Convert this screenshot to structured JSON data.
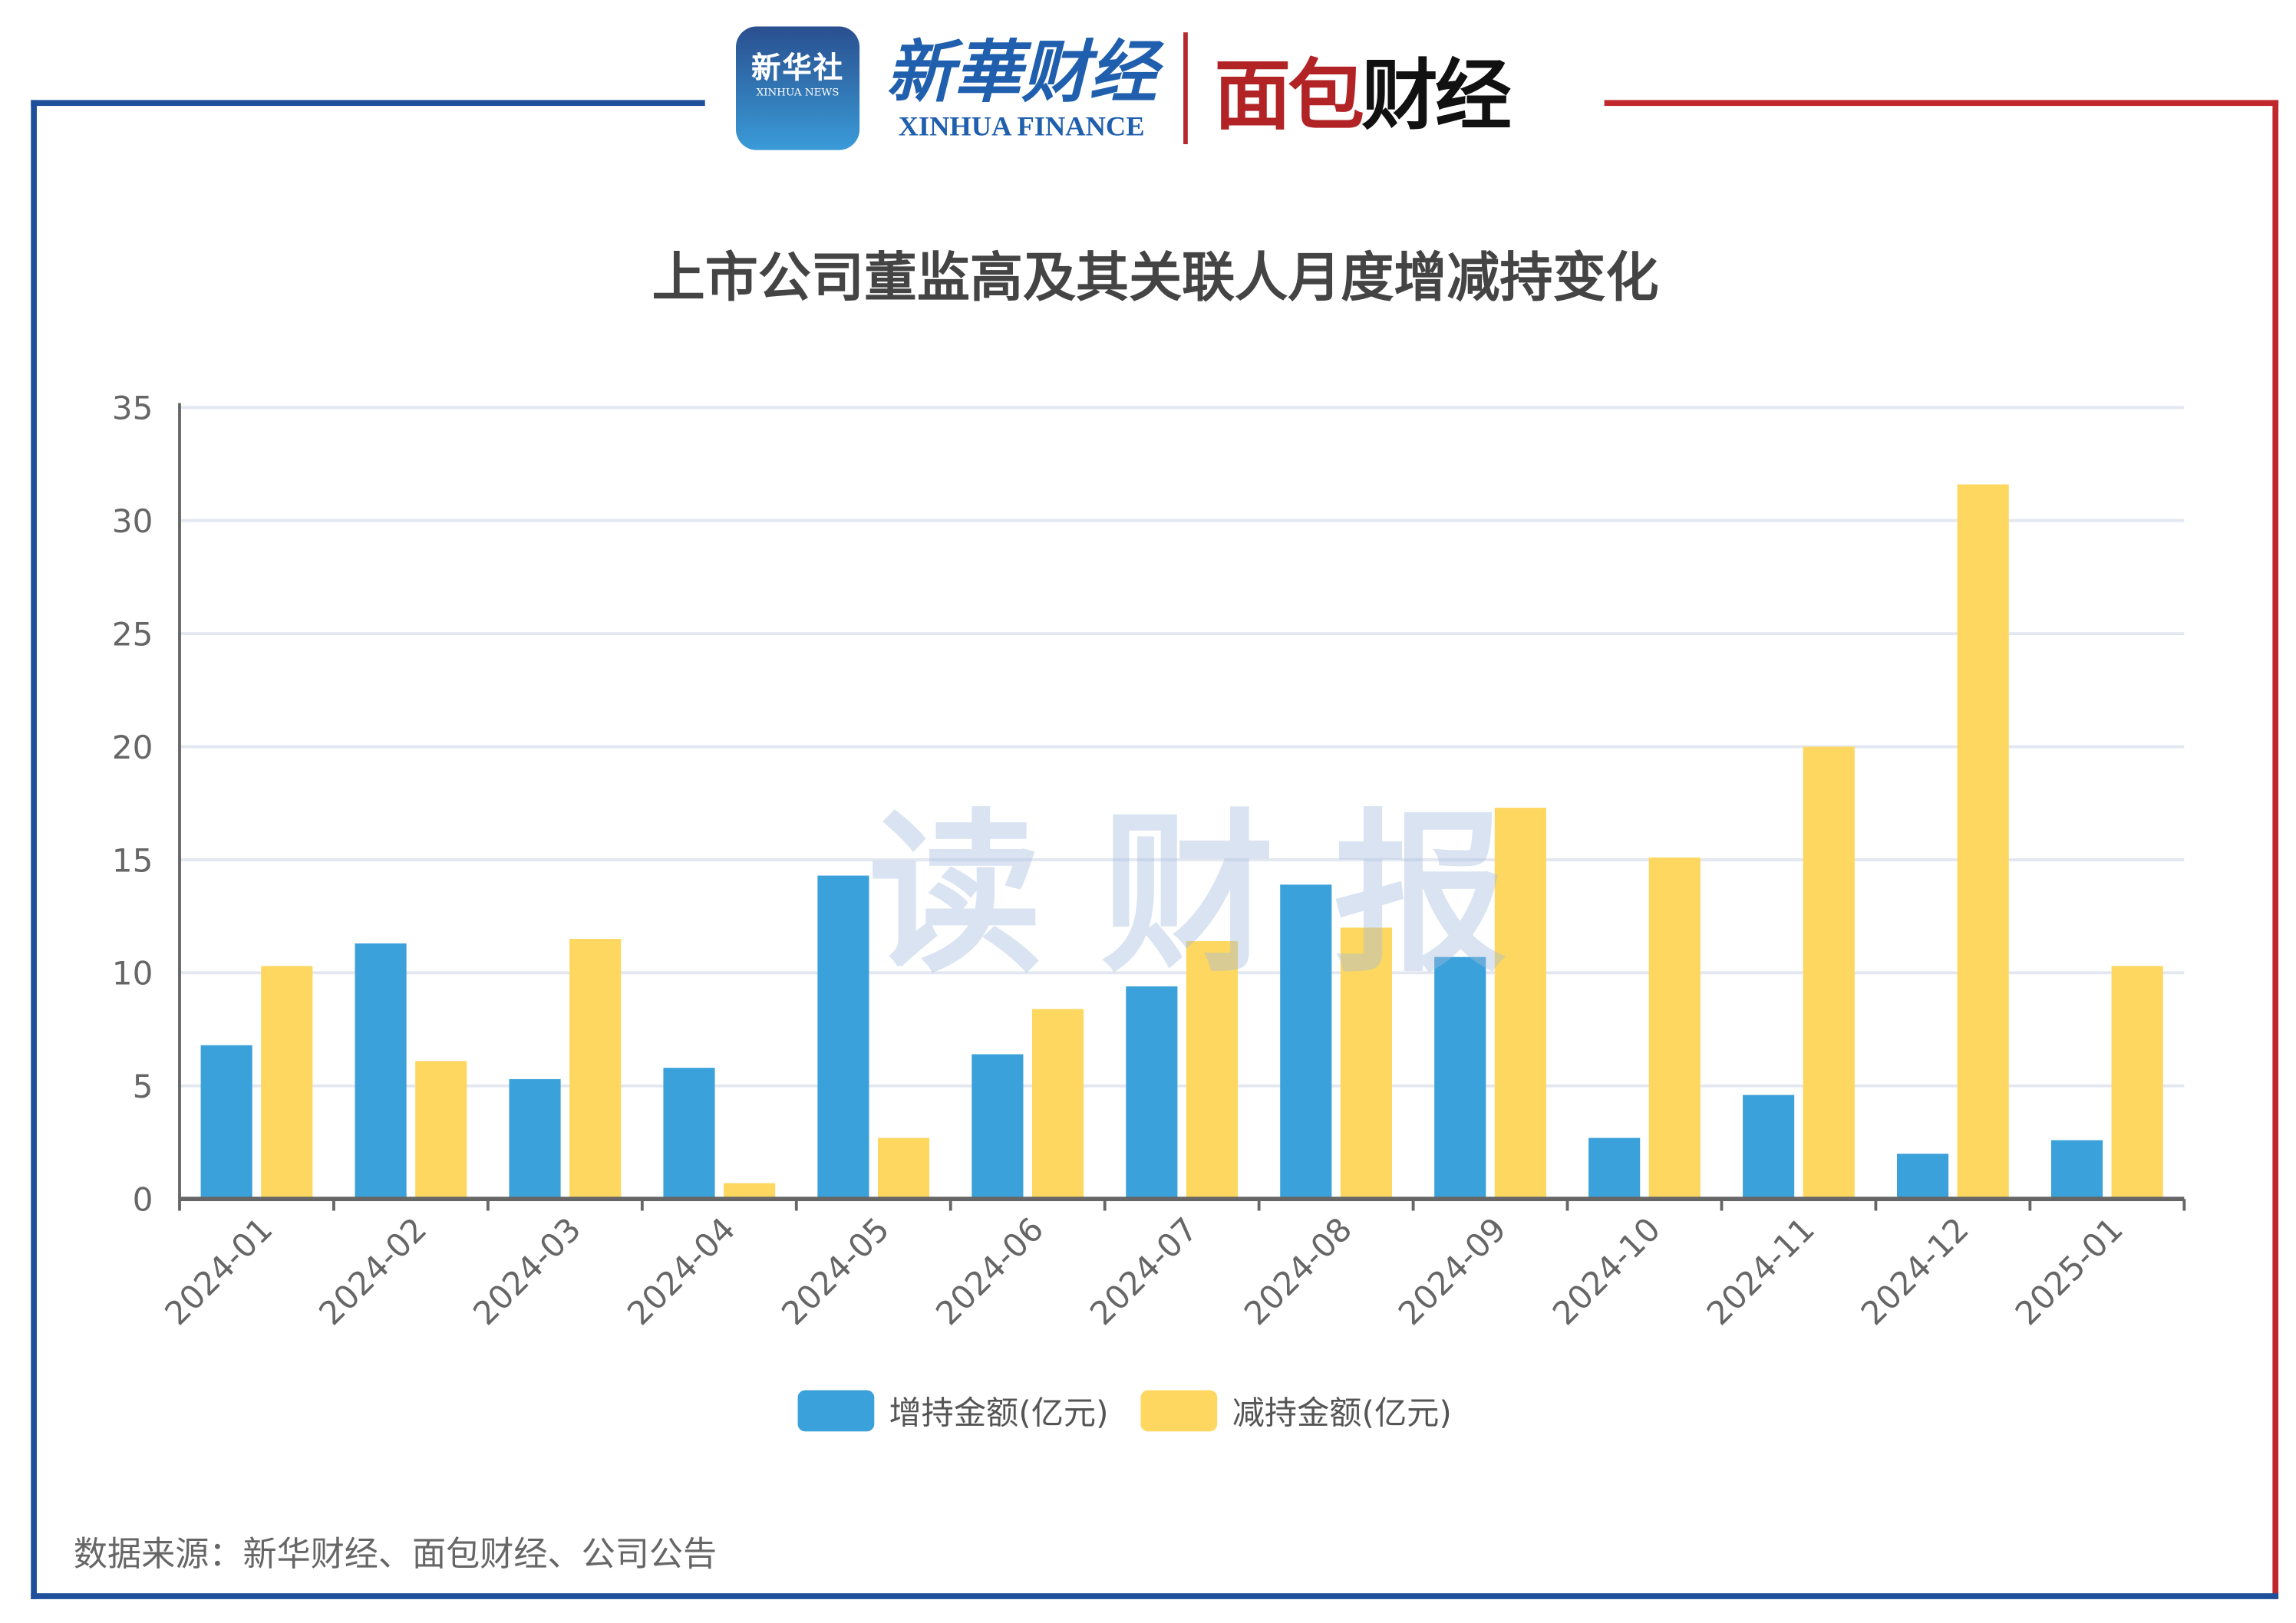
{
  "logos": {
    "xinhua_news_cn": "新华社",
    "xinhua_news_en": "XINHUA NEWS",
    "xinhua_finance_cn": "新華财经",
    "xinhua_finance_en": "XINHUA FINANCE",
    "mianbao_cn": "面包财经"
  },
  "watermark": "读财报",
  "source": "数据来源：新华财经、面包财经、公司公告",
  "colors": {
    "increase": "#3aa1da",
    "decrease": "#fdd75f",
    "frame_blue": "#1f4e9a",
    "frame_red": "#c0282d"
  },
  "chart_data": {
    "type": "bar",
    "title": "上市公司董监高及其关联人月度增减持变化",
    "categories": [
      "2024-01",
      "2024-02",
      "2024-03",
      "2024-04",
      "2024-05",
      "2024-06",
      "2024-07",
      "2024-08",
      "2024-09",
      "2024-10",
      "2024-11",
      "2024-12",
      "2025-01"
    ],
    "series": [
      {
        "name": "增持金额(亿元)",
        "values": [
          6.8,
          11.3,
          5.3,
          5.8,
          14.3,
          6.4,
          9.4,
          13.9,
          10.7,
          2.7,
          4.6,
          2.0,
          2.6
        ]
      },
      {
        "name": "减持金额(亿元)",
        "values": [
          10.3,
          6.1,
          11.5,
          0.7,
          2.7,
          8.4,
          11.4,
          12.0,
          17.3,
          15.1,
          20.0,
          31.6,
          10.3
        ]
      }
    ],
    "yticks": [
      "0",
      "5",
      "10",
      "15",
      "20",
      "25",
      "30",
      "35"
    ],
    "ylim": [
      0,
      35
    ],
    "grid": true,
    "legend": "bottom",
    "xlabel": "",
    "ylabel": ""
  }
}
